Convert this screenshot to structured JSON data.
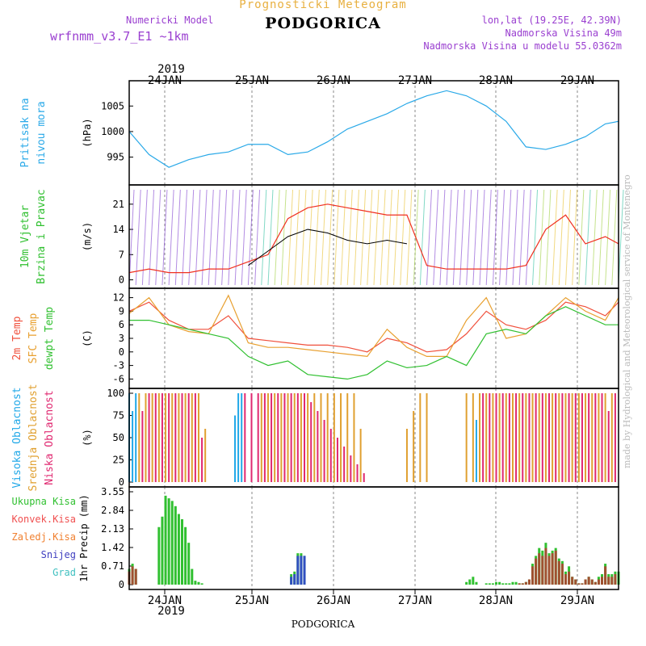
{
  "header": {
    "title": "Prognosticki Meteogram",
    "model_label": "Numericki Model",
    "model_name": "wrfnmm_v3.7_E1 ~1km",
    "location": "PODGORICA",
    "lonlat": "lon,lat (19.25E, 42.39N)",
    "elevation": "Nadmorska Visina 49m",
    "model_elevation": "Nadmorska Visina u modelu 55.0362m",
    "watermark": "made by Hydrological and Meteorological service of Montenegro",
    "bottom_label": "PODGORICA"
  },
  "colors": {
    "pressure": "#2aa9e8",
    "temp2m": "#f0503c",
    "sfc": "#e8a030",
    "dewpt": "#30c030",
    "title": "#e8b040",
    "model": "#9a3fd0",
    "hi_cloud": "#20a8e8",
    "mid_cloud": "#e0a030",
    "low_cloud": "#e02870",
    "total_precip": "#30c030",
    "conv_precip": "#a05030",
    "snow": "#3050c0",
    "speed": "#f03020",
    "axis": "#000000"
  },
  "x_axis": {
    "year": "2019",
    "ticks": [
      "24JAN",
      "25JAN",
      "26JAN",
      "27JAN",
      "28JAN",
      "29JAN"
    ]
  },
  "chart_data": [
    {
      "type": "line",
      "panel": "pressure",
      "ylabel_lines": [
        "Pritisak na",
        "nivou mora"
      ],
      "unit": "(hPa)",
      "ylim": [
        990.5,
        1009
      ],
      "yticks": [
        "995",
        "1000",
        "1005"
      ],
      "x": [
        0,
        6,
        12,
        18,
        24,
        30,
        36,
        42,
        48,
        54,
        60,
        66,
        72,
        78,
        84,
        90,
        96,
        102,
        108,
        114,
        120,
        126,
        132,
        138,
        144,
        148
      ],
      "series": [
        {
          "values": [
            1000,
            995.5,
            993,
            994.5,
            995.5,
            996,
            997.5,
            997.5,
            995.5,
            996,
            998,
            1000.5,
            1002,
            1003.5,
            1005.5,
            1007,
            1008,
            1007,
            1005,
            1002,
            997,
            996.5,
            997.5,
            999,
            1001.5,
            1002
          ]
        }
      ]
    },
    {
      "type": "line",
      "panel": "wind",
      "ylabel_lines": [
        "10m Vjetar",
        "Brzina i Pravac"
      ],
      "unit": "(m/s)",
      "ylim": [
        -1,
        25
      ],
      "yticks": [
        "0",
        "7",
        "14",
        "21"
      ],
      "series": [
        {
          "name": "speed",
          "x": [
            0,
            6,
            12,
            18,
            24,
            30,
            36,
            42,
            48,
            54,
            60,
            66,
            72,
            78,
            84,
            90,
            96,
            102,
            108,
            114,
            120,
            126,
            132,
            138,
            144,
            148
          ],
          "values": [
            2,
            3,
            2,
            2,
            3,
            3,
            5,
            7,
            17,
            20,
            21,
            20,
            19,
            18,
            18,
            4,
            3,
            3,
            3,
            3,
            4,
            14,
            18,
            10,
            12,
            10
          ]
        },
        {
          "name": "mean",
          "x": [
            36,
            42,
            48,
            54,
            60,
            66,
            72,
            78,
            84
          ],
          "values": [
            4,
            8,
            12,
            14,
            13,
            11,
            10,
            11,
            10
          ]
        }
      ]
    },
    {
      "type": "line",
      "panel": "temperature",
      "ylabel_lines": [
        "2m Temp",
        "SFC Temp",
        "dewpt Temp"
      ],
      "unit": "(C)",
      "ylim": [
        -7,
        13
      ],
      "yticks": [
        "-6",
        "-3",
        "0",
        "3",
        "6",
        "9",
        "12"
      ],
      "x": [
        0,
        6,
        12,
        18,
        24,
        30,
        36,
        42,
        48,
        54,
        60,
        66,
        72,
        78,
        84,
        90,
        96,
        102,
        108,
        114,
        120,
        126,
        132,
        138,
        144,
        148
      ],
      "series": [
        {
          "name": "2m Temp",
          "values": [
            9,
            11,
            7,
            5,
            5,
            8,
            3,
            2.5,
            2,
            1.5,
            1.5,
            1,
            0,
            3,
            2,
            0,
            0.5,
            4,
            9,
            6,
            5,
            7,
            11,
            10,
            8,
            11
          ]
        },
        {
          "name": "SFC Temp",
          "values": [
            8.5,
            12,
            6,
            4.5,
            4,
            12.5,
            2,
            1,
            1,
            0.5,
            0,
            -0.5,
            -1,
            5,
            1,
            -1,
            -1,
            7,
            12,
            3,
            4,
            8,
            12,
            9,
            7,
            12
          ]
        },
        {
          "name": "dewpt Temp",
          "values": [
            7,
            7,
            6,
            5,
            4,
            3,
            -1,
            -3,
            -2,
            -5,
            -5.5,
            -6,
            -5,
            -2,
            -3.5,
            -3,
            -1,
            -3,
            4,
            5,
            4,
            8,
            10,
            8,
            6,
            6
          ]
        }
      ]
    },
    {
      "type": "bar",
      "panel": "clouds",
      "ylabel_lines": [
        "Visoka Oblacnost",
        "Srednja Oblacnost",
        "Niska Oblacnost"
      ],
      "unit": "(%)",
      "ylim": [
        0,
        100
      ],
      "yticks": [
        "0",
        "25",
        "50",
        "75",
        "100"
      ],
      "series": [
        {
          "name": "Visoka",
          "x": [
            0,
            1,
            2,
            32,
            33,
            34,
            105,
            106
          ],
          "values": [
            100,
            80,
            100,
            75,
            100,
            100,
            70,
            60
          ]
        },
        {
          "name": "Srednja",
          "x": [
            3,
            5,
            7,
            9,
            11,
            13,
            15,
            17,
            19,
            21,
            23,
            40,
            42,
            44,
            46,
            48,
            50,
            52,
            54,
            56,
            58,
            60,
            62,
            64,
            66,
            68,
            70,
            84,
            86,
            88,
            90,
            102,
            104,
            106,
            108,
            110,
            112,
            114,
            116,
            118,
            120,
            122,
            124,
            126,
            128,
            130,
            132,
            134,
            136,
            138,
            140,
            142,
            144,
            146
          ],
          "values": [
            100,
            100,
            100,
            100,
            100,
            100,
            100,
            100,
            100,
            100,
            60,
            100,
            100,
            100,
            100,
            100,
            100,
            100,
            100,
            100,
            100,
            100,
            100,
            100,
            100,
            100,
            60,
            60,
            80,
            100,
            100,
            100,
            100,
            100,
            100,
            100,
            100,
            100,
            100,
            100,
            100,
            100,
            100,
            100,
            100,
            100,
            100,
            100,
            100,
            100,
            100,
            100,
            100,
            100
          ]
        },
        {
          "name": "Niska",
          "x": [
            4,
            6,
            8,
            10,
            12,
            14,
            16,
            18,
            20,
            22,
            35,
            37,
            39,
            41,
            43,
            45,
            47,
            49,
            51,
            53,
            55,
            57,
            59,
            61,
            63,
            65,
            67,
            69,
            71,
            73,
            75,
            77,
            79,
            81,
            107,
            109,
            111,
            113,
            115,
            117,
            119,
            121,
            123,
            125,
            127,
            129,
            131,
            133,
            135,
            137,
            139,
            141,
            143,
            145,
            147
          ],
          "values": [
            80,
            100,
            100,
            100,
            100,
            100,
            100,
            100,
            100,
            50,
            100,
            100,
            100,
            100,
            100,
            100,
            100,
            100,
            100,
            100,
            90,
            80,
            70,
            60,
            50,
            40,
            30,
            20,
            10,
            0,
            0,
            0,
            0,
            0,
            100,
            100,
            100,
            100,
            100,
            100,
            100,
            100,
            100,
            100,
            100,
            100,
            100,
            100,
            100,
            100,
            100,
            100,
            100,
            80,
            100
          ]
        }
      ]
    },
    {
      "type": "bar",
      "panel": "precipitation",
      "ylabel_lines": [
        "Ukupna Kisa",
        "Konvek.Kisa",
        "Zaledj.Kisa",
        "Snijeg",
        "Grad"
      ],
      "unit": "1hr Precip (mm)",
      "ylim": [
        0,
        3.55
      ],
      "yticks": [
        "0",
        "0.71",
        "1.42",
        "2.13",
        "2.84",
        "3.55"
      ],
      "series": [
        {
          "name": "Ukupna Kisa",
          "x": [
            0,
            1,
            2,
            9,
            10,
            11,
            12,
            13,
            14,
            15,
            16,
            17,
            18,
            19,
            20,
            21,
            22,
            49,
            50,
            51,
            52,
            53,
            102,
            103,
            104,
            105,
            108,
            109,
            110,
            111,
            112,
            113,
            114,
            115,
            116,
            117,
            118,
            119,
            120,
            121,
            122,
            123,
            124,
            125,
            126,
            127,
            128,
            129,
            130,
            131,
            132,
            133,
            134,
            135,
            136,
            137,
            138,
            139,
            140,
            141,
            142,
            143,
            144,
            145,
            146,
            147,
            148
          ],
          "values": [
            0.6,
            0.8,
            0.6,
            2.2,
            2.6,
            3.4,
            3.3,
            3.2,
            3.0,
            2.7,
            2.5,
            2.2,
            1.6,
            0.6,
            0.15,
            0.1,
            0.05,
            0.4,
            0.5,
            1.2,
            1.2,
            1.1,
            0.1,
            0.2,
            0.3,
            0.1,
            0.05,
            0.05,
            0.05,
            0.1,
            0.1,
            0.05,
            0.05,
            0.05,
            0.1,
            0.1,
            0.05,
            0.05,
            0.1,
            0.2,
            0.8,
            1.1,
            1.4,
            1.3,
            1.6,
            1.2,
            1.3,
            1.4,
            1.0,
            0.9,
            0.5,
            0.7,
            0.3,
            0.2,
            0.05,
            0.05,
            0.2,
            0.3,
            0.2,
            0.1,
            0.3,
            0.4,
            0.8,
            0.4,
            0.4,
            0.5,
            0.5
          ]
        },
        {
          "name": "Konvek.Kisa",
          "x": [
            0,
            1,
            2,
            118,
            119,
            120,
            121,
            122,
            123,
            124,
            125,
            126,
            127,
            128,
            129,
            130,
            131,
            132,
            133,
            134,
            135,
            136,
            137,
            138,
            139,
            140,
            141,
            142,
            143,
            144,
            145,
            146,
            147
          ],
          "values": [
            0.5,
            0.7,
            0.6,
            0.05,
            0.05,
            0.1,
            0.2,
            0.7,
            1.0,
            1.2,
            1.1,
            1.4,
            1.1,
            1.2,
            1.3,
            0.9,
            0.8,
            0.4,
            0.5,
            0.3,
            0.2,
            0.05,
            0.05,
            0.2,
            0.3,
            0.2,
            0.1,
            0.2,
            0.3,
            0.7,
            0.3,
            0.3,
            0.4
          ]
        },
        {
          "name": "Snijeg",
          "x": [
            49,
            50,
            51,
            52,
            53
          ],
          "values": [
            0.3,
            0.4,
            1.1,
            1.1,
            1.1
          ]
        }
      ]
    }
  ]
}
